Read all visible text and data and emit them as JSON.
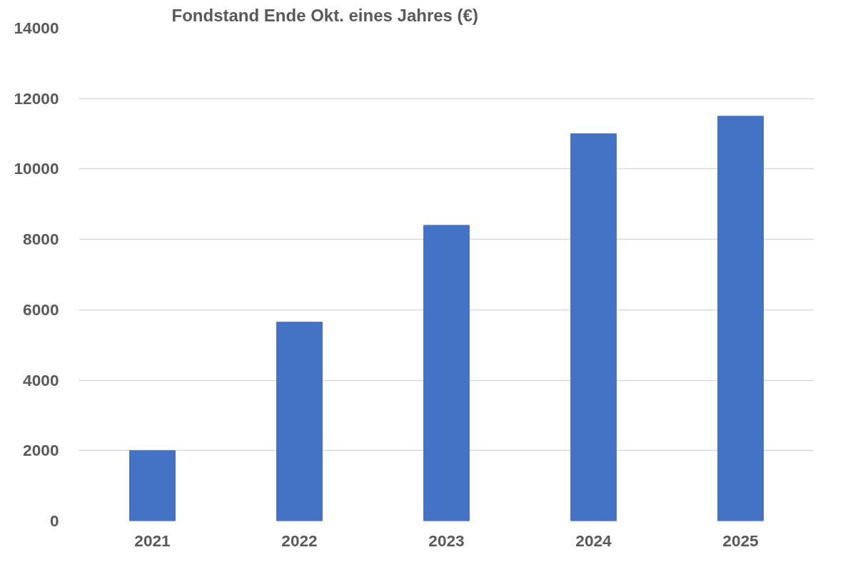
{
  "chart_data": {
    "type": "bar",
    "title": "Fondstand Ende Okt. eines Jahres (€)",
    "categories": [
      "2021",
      "2022",
      "2023",
      "2024",
      "2025"
    ],
    "values": [
      2000,
      5650,
      8400,
      11000,
      11500
    ],
    "color": "#4472c4",
    "ylim": [
      0,
      14000
    ],
    "yticks": [
      0,
      2000,
      4000,
      6000,
      8000,
      10000,
      12000,
      14000
    ],
    "grid": "y"
  }
}
